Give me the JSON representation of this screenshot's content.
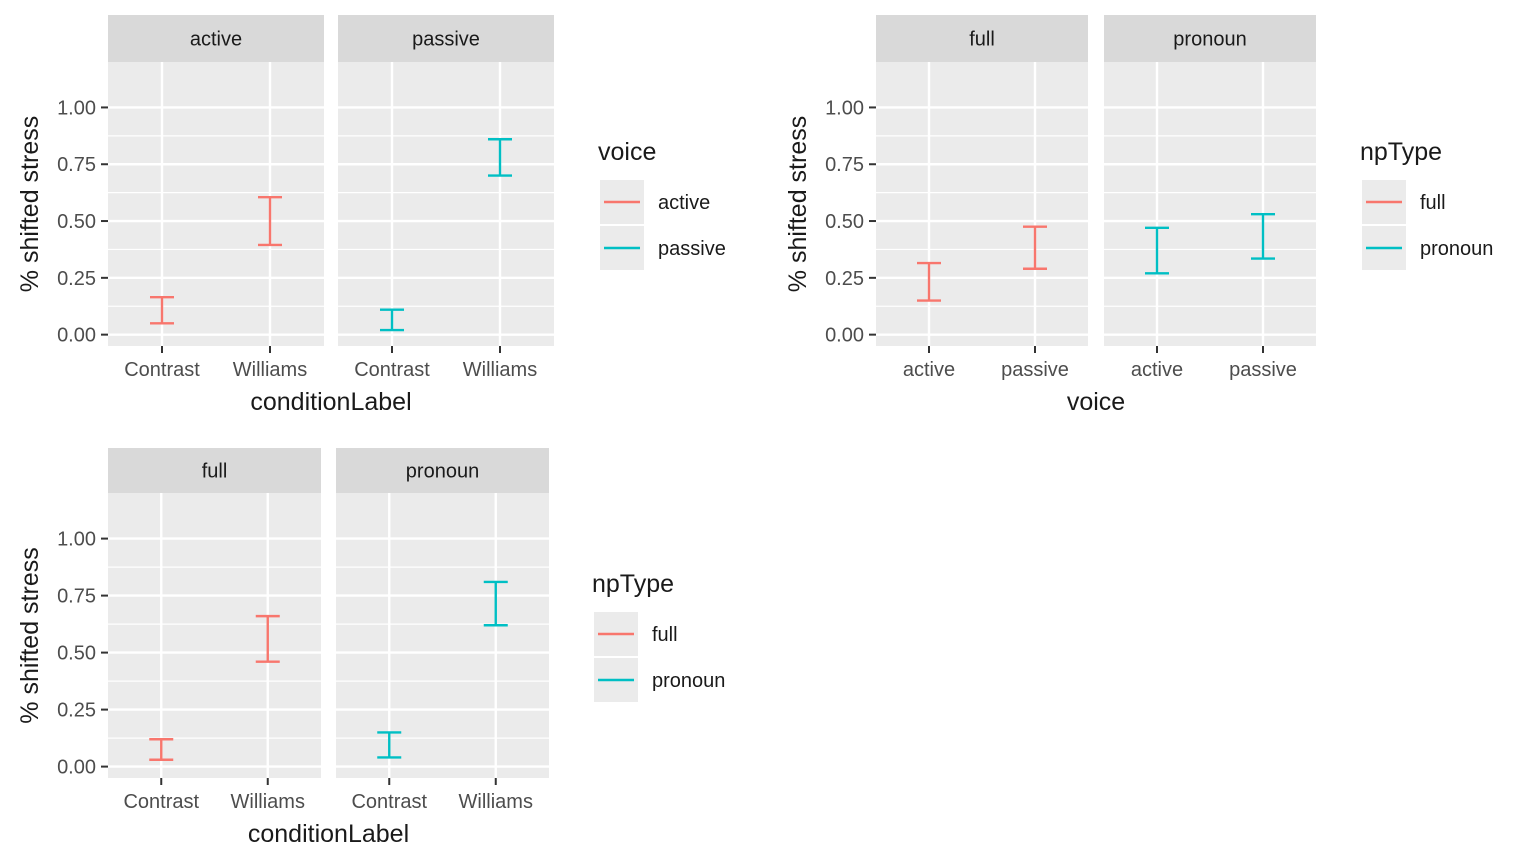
{
  "colors": {
    "red": "#F8766D",
    "teal": "#00BFC4",
    "panel_bg": "#EBEBEB",
    "strip_bg": "#D9D9D9",
    "grid": "#FFFFFF",
    "text": "#1A1A1A",
    "tick_text": "#4D4D4D"
  },
  "chart_data": [
    {
      "type": "errorbar",
      "ylabel": "% shifted stress",
      "xlabel": "conditionLabel",
      "ylim": [
        -0.05,
        1.2
      ],
      "yticks": [
        0.0,
        0.25,
        0.5,
        0.75,
        1.0
      ],
      "ytick_labels": [
        "0.00",
        "0.25",
        "0.50",
        "0.75",
        "1.00"
      ],
      "categories": [
        "Contrast",
        "Williams"
      ],
      "legend": {
        "title": "voice",
        "entries": [
          {
            "label": "active",
            "color": "#F8766D"
          },
          {
            "label": "passive",
            "color": "#00BFC4"
          }
        ]
      },
      "facets": [
        {
          "label": "active",
          "color": "#F8766D",
          "bars": [
            {
              "x": "Contrast",
              "ymin": 0.05,
              "ymax": 0.165
            },
            {
              "x": "Williams",
              "ymin": 0.395,
              "ymax": 0.605
            }
          ]
        },
        {
          "label": "passive",
          "color": "#00BFC4",
          "bars": [
            {
              "x": "Contrast",
              "ymin": 0.02,
              "ymax": 0.11
            },
            {
              "x": "Williams",
              "ymin": 0.7,
              "ymax": 0.86
            }
          ]
        }
      ]
    },
    {
      "type": "errorbar",
      "ylabel": "% shifted stress",
      "xlabel": "voice",
      "ylim": [
        -0.05,
        1.2
      ],
      "yticks": [
        0.0,
        0.25,
        0.5,
        0.75,
        1.0
      ],
      "ytick_labels": [
        "0.00",
        "0.25",
        "0.50",
        "0.75",
        "1.00"
      ],
      "categories": [
        "active",
        "passive"
      ],
      "legend": {
        "title": "npType",
        "entries": [
          {
            "label": "full",
            "color": "#F8766D"
          },
          {
            "label": "pronoun",
            "color": "#00BFC4"
          }
        ]
      },
      "facets": [
        {
          "label": "full",
          "color": "#F8766D",
          "bars": [
            {
              "x": "active",
              "ymin": 0.15,
              "ymax": 0.315
            },
            {
              "x": "passive",
              "ymin": 0.29,
              "ymax": 0.475
            }
          ]
        },
        {
          "label": "pronoun",
          "color": "#00BFC4",
          "bars": [
            {
              "x": "active",
              "ymin": 0.27,
              "ymax": 0.47
            },
            {
              "x": "passive",
              "ymin": 0.335,
              "ymax": 0.53
            }
          ]
        }
      ]
    },
    {
      "type": "errorbar",
      "ylabel": "% shifted stress",
      "xlabel": "conditionLabel",
      "ylim": [
        -0.05,
        1.2
      ],
      "yticks": [
        0.0,
        0.25,
        0.5,
        0.75,
        1.0
      ],
      "ytick_labels": [
        "0.00",
        "0.25",
        "0.50",
        "0.75",
        "1.00"
      ],
      "categories": [
        "Contrast",
        "Williams"
      ],
      "legend": {
        "title": "npType",
        "entries": [
          {
            "label": "full",
            "color": "#F8766D"
          },
          {
            "label": "pronoun",
            "color": "#00BFC4"
          }
        ]
      },
      "facets": [
        {
          "label": "full",
          "color": "#F8766D",
          "bars": [
            {
              "x": "Contrast",
              "ymin": 0.03,
              "ymax": 0.12
            },
            {
              "x": "Williams",
              "ymin": 0.46,
              "ymax": 0.66
            }
          ]
        },
        {
          "label": "pronoun",
          "color": "#00BFC4",
          "bars": [
            {
              "x": "Contrast",
              "ymin": 0.04,
              "ymax": 0.15
            },
            {
              "x": "Williams",
              "ymin": 0.62,
              "ymax": 0.81
            }
          ]
        }
      ]
    }
  ]
}
